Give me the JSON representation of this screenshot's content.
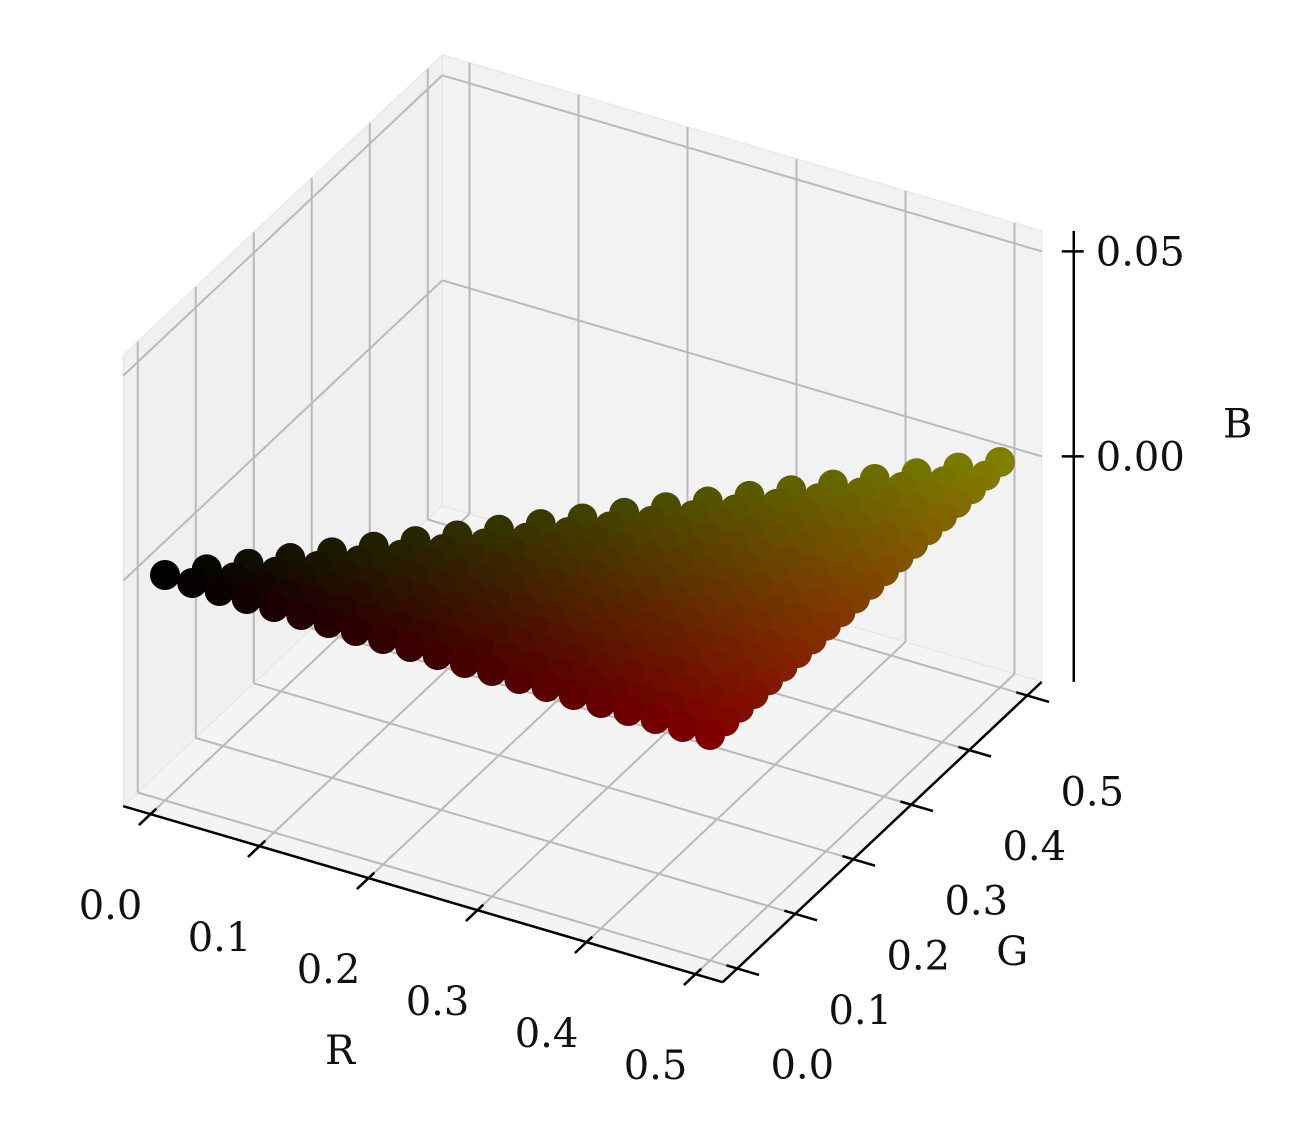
{
  "chart_data": {
    "type": "scatter3d",
    "xlabel": "R",
    "ylabel": "G",
    "zlabel": "B",
    "xlim": [
      -0.025,
      0.525
    ],
    "ylim": [
      -0.025,
      0.525
    ],
    "zlim": [
      -0.055,
      0.055
    ],
    "xticks": [
      {
        "value": 0,
        "label": "0.0"
      },
      0.1,
      0.2,
      0.3,
      0.4,
      0.5
    ],
    "yticks": [
      {
        "value": 0,
        "label": "0.0"
      },
      0.1,
      0.2,
      0.3,
      0.4,
      0.5
    ],
    "zticks": [
      {
        "value": 0,
        "label": "0.00"
      },
      0.05
    ],
    "grid": true,
    "x": [
      0.5,
      0.475,
      0.5,
      0.45,
      0.475,
      0.5,
      0.425,
      0.45,
      0.475,
      0.5,
      0.4,
      0.425,
      0.45,
      0.475,
      0.5,
      0.375,
      0.4,
      0.425,
      0.45,
      0.475,
      0.5,
      0.35,
      0.375,
      0.4,
      0.425,
      0.45,
      0.475,
      0.5,
      0.325,
      0.35,
      0.375,
      0.4,
      0.425,
      0.45,
      0.475,
      0.5,
      0.3,
      0.325,
      0.35,
      0.375,
      0.4,
      0.425,
      0.45,
      0.475,
      0.5,
      0.275,
      0.3,
      0.325,
      0.35,
      0.375,
      0.4,
      0.425,
      0.45,
      0.475,
      0.5,
      0.25,
      0.275,
      0.3,
      0.325,
      0.35,
      0.375,
      0.4,
      0.425,
      0.45,
      0.475,
      0.5,
      0.225,
      0.25,
      0.275,
      0.3,
      0.325,
      0.35,
      0.375,
      0.4,
      0.425,
      0.45,
      0.475,
      0.5,
      0.2,
      0.225,
      0.25,
      0.275,
      0.3,
      0.325,
      0.35,
      0.375,
      0.4,
      0.425,
      0.45,
      0.475,
      0.5,
      0.175,
      0.2,
      0.225,
      0.25,
      0.275,
      0.3,
      0.325,
      0.35,
      0.375,
      0.4,
      0.425,
      0.45,
      0.475,
      0.5,
      0.15,
      0.175,
      0.2,
      0.225,
      0.25,
      0.275,
      0.3,
      0.325,
      0.35,
      0.375,
      0.4,
      0.425,
      0.45,
      0.475,
      0.5,
      0.125,
      0.15,
      0.175,
      0.2,
      0.225,
      0.25,
      0.275,
      0.3,
      0.325,
      0.35,
      0.375,
      0.4,
      0.425,
      0.45,
      0.475,
      0.5,
      0.1,
      0.125,
      0.15,
      0.175,
      0.2,
      0.225,
      0.25,
      0.275,
      0.3,
      0.325,
      0.35,
      0.375,
      0.4,
      0.425,
      0.45,
      0.475,
      0.5,
      0.075,
      0.1,
      0.125,
      0.15,
      0.175,
      0.2,
      0.225,
      0.25,
      0.275,
      0.3,
      0.325,
      0.35,
      0.375,
      0.4,
      0.425,
      0.45,
      0.475,
      0.5,
      0.05,
      0.075,
      0.1,
      0.125,
      0.15,
      0.175,
      0.2,
      0.225,
      0.25,
      0.275,
      0.3,
      0.325,
      0.35,
      0.375,
      0.4,
      0.425,
      0.45,
      0.475,
      0.5,
      0.025,
      0.05,
      0.075,
      0.1,
      0.125,
      0.15,
      0.175,
      0.2,
      0.225,
      0.25,
      0.275,
      0.3,
      0.325,
      0.35,
      0.375,
      0.4,
      0.425,
      0.45,
      0.475,
      0.5,
      0,
      0.025,
      0.05,
      0.075,
      0.1,
      0.125,
      0.15,
      0.175,
      0.2,
      0.225,
      0.25,
      0.275,
      0.3,
      0.325,
      0.35,
      0.375,
      0.4,
      0.425,
      0.45,
      0.475,
      0.5
    ],
    "y": [
      0.5,
      0.475,
      0.475,
      0.45,
      0.45,
      0.45,
      0.425,
      0.425,
      0.425,
      0.425,
      0.4,
      0.4,
      0.4,
      0.4,
      0.4,
      0.375,
      0.375,
      0.375,
      0.375,
      0.375,
      0.375,
      0.35,
      0.35,
      0.35,
      0.35,
      0.35,
      0.35,
      0.35,
      0.325,
      0.325,
      0.325,
      0.325,
      0.325,
      0.325,
      0.325,
      0.325,
      0.3,
      0.3,
      0.3,
      0.3,
      0.3,
      0.3,
      0.3,
      0.3,
      0.3,
      0.275,
      0.275,
      0.275,
      0.275,
      0.275,
      0.275,
      0.275,
      0.275,
      0.275,
      0.275,
      0.25,
      0.25,
      0.25,
      0.25,
      0.25,
      0.25,
      0.25,
      0.25,
      0.25,
      0.25,
      0.25,
      0.225,
      0.225,
      0.225,
      0.225,
      0.225,
      0.225,
      0.225,
      0.225,
      0.225,
      0.225,
      0.225,
      0.225,
      0.2,
      0.2,
      0.2,
      0.2,
      0.2,
      0.2,
      0.2,
      0.2,
      0.2,
      0.2,
      0.2,
      0.2,
      0.2,
      0.175,
      0.175,
      0.175,
      0.175,
      0.175,
      0.175,
      0.175,
      0.175,
      0.175,
      0.175,
      0.175,
      0.175,
      0.175,
      0.175,
      0.15,
      0.15,
      0.15,
      0.15,
      0.15,
      0.15,
      0.15,
      0.15,
      0.15,
      0.15,
      0.15,
      0.15,
      0.15,
      0.15,
      0.15,
      0.125,
      0.125,
      0.125,
      0.125,
      0.125,
      0.125,
      0.125,
      0.125,
      0.125,
      0.125,
      0.125,
      0.125,
      0.125,
      0.125,
      0.125,
      0.125,
      0.1,
      0.1,
      0.1,
      0.1,
      0.1,
      0.1,
      0.1,
      0.1,
      0.1,
      0.1,
      0.1,
      0.1,
      0.1,
      0.1,
      0.1,
      0.1,
      0.1,
      0.075,
      0.075,
      0.075,
      0.075,
      0.075,
      0.075,
      0.075,
      0.075,
      0.075,
      0.075,
      0.075,
      0.075,
      0.075,
      0.075,
      0.075,
      0.075,
      0.075,
      0.075,
      0.05,
      0.05,
      0.05,
      0.05,
      0.05,
      0.05,
      0.05,
      0.05,
      0.05,
      0.05,
      0.05,
      0.05,
      0.05,
      0.05,
      0.05,
      0.05,
      0.05,
      0.05,
      0.05,
      0.025,
      0.025,
      0.025,
      0.025,
      0.025,
      0.025,
      0.025,
      0.025,
      0.025,
      0.025,
      0.025,
      0.025,
      0.025,
      0.025,
      0.025,
      0.025,
      0.025,
      0.025,
      0.025,
      0.025,
      0,
      0,
      0,
      0,
      0,
      0,
      0,
      0,
      0,
      0,
      0,
      0,
      0,
      0,
      0,
      0,
      0,
      0,
      0,
      0,
      0
    ],
    "z": [
      0,
      0,
      0,
      0,
      0,
      0,
      0,
      0,
      0,
      0,
      0,
      0,
      0,
      0,
      0,
      0,
      0,
      0,
      0,
      0,
      0,
      0,
      0,
      0,
      0,
      0,
      0,
      0,
      0,
      0,
      0,
      0,
      0,
      0,
      0,
      0,
      0,
      0,
      0,
      0,
      0,
      0,
      0,
      0,
      0,
      0,
      0,
      0,
      0,
      0,
      0,
      0,
      0,
      0,
      0,
      0,
      0,
      0,
      0,
      0,
      0,
      0,
      0,
      0,
      0,
      0,
      0,
      0,
      0,
      0,
      0,
      0,
      0,
      0,
      0,
      0,
      0,
      0,
      0,
      0,
      0,
      0,
      0,
      0,
      0,
      0,
      0,
      0,
      0,
      0,
      0,
      0,
      0,
      0,
      0,
      0,
      0,
      0,
      0,
      0,
      0,
      0,
      0,
      0,
      0,
      0,
      0,
      0,
      0,
      0,
      0,
      0,
      0,
      0,
      0,
      0,
      0,
      0,
      0,
      0,
      0,
      0,
      0,
      0,
      0,
      0,
      0,
      0,
      0,
      0,
      0,
      0,
      0,
      0,
      0,
      0,
      0,
      0,
      0,
      0,
      0,
      0,
      0,
      0,
      0,
      0,
      0,
      0,
      0,
      0,
      0,
      0,
      0,
      0,
      0,
      0,
      0,
      0,
      0,
      0,
      0,
      0,
      0,
      0,
      0,
      0,
      0,
      0,
      0,
      0,
      0,
      0,
      0,
      0,
      0,
      0,
      0,
      0,
      0,
      0,
      0,
      0,
      0,
      0,
      0,
      0,
      0,
      0,
      0,
      0,
      0,
      0,
      0,
      0,
      0,
      0,
      0,
      0,
      0,
      0,
      0,
      0,
      0,
      0,
      0,
      0,
      0,
      0,
      0,
      0,
      0,
      0,
      0,
      0,
      0,
      0,
      0,
      0,
      0,
      0,
      0,
      0,
      0,
      0,
      0,
      0,
      0,
      0,
      0,
      0,
      0
    ]
  }
}
